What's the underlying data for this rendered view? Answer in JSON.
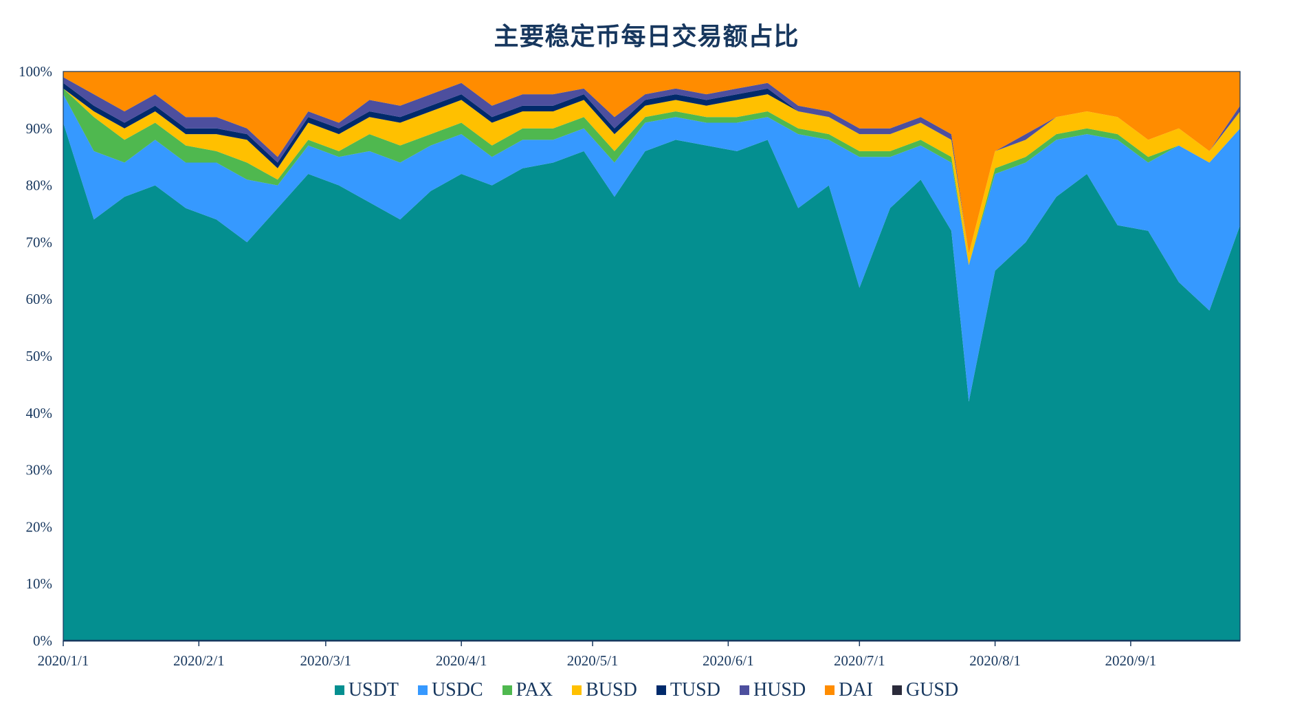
{
  "title": "主要稳定币每日交易额占比",
  "colors": {
    "USDT": "#048f90",
    "USDC": "#3699ff",
    "PAX": "#4fb84f",
    "BUSD": "#ffc000",
    "TUSD": "#002a6b",
    "HUSD": "#4d4f9e",
    "DAI": "#ff8c00",
    "GUSD": "#2b2b3b",
    "axis": "#17375e"
  },
  "chart_data": {
    "type": "area",
    "stacked": true,
    "percent": true,
    "title": "主要稳定币每日交易额占比",
    "xlabel": "",
    "ylabel": "",
    "ylim": [
      0,
      100
    ],
    "yticks": [
      "0%",
      "10%",
      "20%",
      "30%",
      "40%",
      "50%",
      "60%",
      "70%",
      "80%",
      "90%",
      "100%"
    ],
    "xticks": [
      "2020/1/1",
      "2020/2/1",
      "2020/3/1",
      "2020/4/1",
      "2020/5/1",
      "2020/6/1",
      "2020/7/1",
      "2020/8/1",
      "2020/9/1"
    ],
    "legend_position": "bottom",
    "grid": false,
    "x": [
      "2020/1/1",
      "2020/1/8",
      "2020/1/15",
      "2020/1/22",
      "2020/1/29",
      "2020/2/5",
      "2020/2/12",
      "2020/2/19",
      "2020/2/26",
      "2020/3/4",
      "2020/3/11",
      "2020/3/18",
      "2020/3/25",
      "2020/4/1",
      "2020/4/8",
      "2020/4/15",
      "2020/4/22",
      "2020/4/29",
      "2020/5/6",
      "2020/5/13",
      "2020/5/20",
      "2020/5/27",
      "2020/6/3",
      "2020/6/10",
      "2020/6/17",
      "2020/6/24",
      "2020/7/1",
      "2020/7/8",
      "2020/7/15",
      "2020/7/22",
      "2020/7/26",
      "2020/8/1",
      "2020/8/8",
      "2020/8/15",
      "2020/8/22",
      "2020/8/29",
      "2020/9/5",
      "2020/9/12",
      "2020/9/19",
      "2020/9/26"
    ],
    "series": [
      {
        "name": "USDT",
        "values": [
          91,
          74,
          78,
          80,
          76,
          74,
          70,
          76,
          82,
          80,
          77,
          74,
          79,
          82,
          80,
          83,
          84,
          86,
          78,
          86,
          88,
          87,
          86,
          88,
          76,
          80,
          62,
          76,
          81,
          72,
          42,
          65,
          70,
          78,
          82,
          73,
          72,
          63,
          58,
          73
        ]
      },
      {
        "name": "USDC",
        "values": [
          5,
          12,
          6,
          8,
          8,
          10,
          11,
          4,
          5,
          5,
          9,
          10,
          8,
          7,
          5,
          5,
          4,
          4,
          6,
          5,
          4,
          4,
          5,
          4,
          13,
          8,
          23,
          9,
          6,
          12,
          24,
          17,
          14,
          10,
          7,
          15,
          12,
          24,
          26,
          17
        ]
      },
      {
        "name": "PAX",
        "values": [
          1,
          6,
          4,
          3,
          3,
          2,
          3,
          1,
          1,
          1,
          3,
          3,
          2,
          2,
          2,
          2,
          2,
          2,
          2,
          1,
          1,
          1,
          1,
          1,
          1,
          1,
          1,
          1,
          1,
          1,
          0,
          1,
          1,
          1,
          1,
          1,
          1,
          0,
          0,
          0
        ]
      },
      {
        "name": "BUSD",
        "values": [
          0,
          1,
          2,
          2,
          2,
          3,
          4,
          2,
          3,
          3,
          3,
          4,
          4,
          4,
          4,
          3,
          3,
          3,
          3,
          2,
          2,
          2,
          3,
          3,
          3,
          3,
          3,
          3,
          3,
          3,
          2,
          3,
          3,
          3,
          3,
          3,
          3,
          3,
          2,
          3
        ]
      },
      {
        "name": "TUSD",
        "values": [
          1,
          1,
          1,
          1,
          1,
          1,
          1,
          1,
          1,
          1,
          1,
          1,
          1,
          1,
          1,
          1,
          1,
          1,
          1,
          1,
          1,
          1,
          1,
          1,
          0,
          0,
          0,
          0,
          0,
          0,
          0,
          0,
          0,
          0,
          0,
          0,
          0,
          0,
          0,
          0
        ]
      },
      {
        "name": "HUSD",
        "values": [
          1,
          2,
          2,
          2,
          2,
          2,
          1,
          1,
          1,
          1,
          2,
          2,
          2,
          2,
          2,
          2,
          2,
          1,
          2,
          1,
          1,
          1,
          1,
          1,
          1,
          1,
          1,
          1,
          1,
          1,
          0,
          0,
          1,
          0,
          0,
          0,
          0,
          0,
          0,
          1
        ]
      },
      {
        "name": "DAI",
        "values": [
          1,
          4,
          7,
          4,
          8,
          8,
          10,
          15,
          7,
          9,
          5,
          6,
          4,
          2,
          6,
          4,
          4,
          3,
          8,
          4,
          3,
          4,
          3,
          2,
          6,
          7,
          10,
          10,
          8,
          11,
          32,
          14,
          11,
          8,
          7,
          8,
          12,
          10,
          14,
          6
        ]
      },
      {
        "name": "GUSD",
        "values": [
          0,
          0,
          0,
          0,
          0,
          0,
          0,
          0,
          0,
          0,
          0,
          0,
          0,
          0,
          0,
          0,
          0,
          0,
          0,
          0,
          0,
          0,
          0,
          0,
          0,
          0,
          0,
          0,
          0,
          0,
          0,
          0,
          0,
          0,
          0,
          0,
          0,
          0,
          0,
          0
        ]
      }
    ]
  },
  "legend": [
    {
      "label": "USDT"
    },
    {
      "label": "USDC"
    },
    {
      "label": "PAX"
    },
    {
      "label": "BUSD"
    },
    {
      "label": "TUSD"
    },
    {
      "label": "HUSD"
    },
    {
      "label": "DAI"
    },
    {
      "label": "GUSD"
    }
  ]
}
